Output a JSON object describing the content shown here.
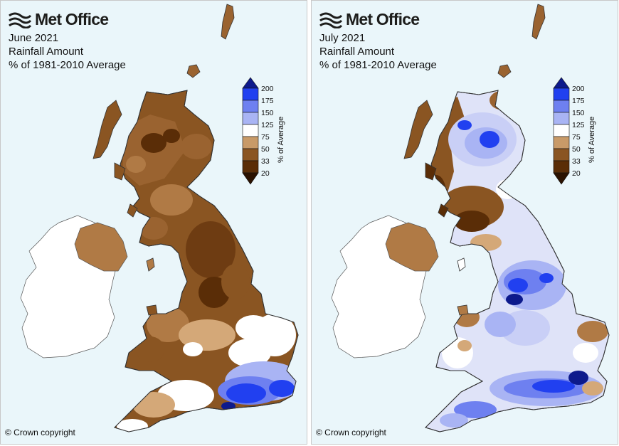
{
  "maps": [
    {
      "logo_text": "Met Office",
      "title_line1": "June 2021",
      "title_line2": "Rainfall Amount",
      "title_line3": "% of 1981-2010 Average",
      "copyright": "© Crown copyright"
    },
    {
      "logo_text": "Met Office",
      "title_line1": "July 2021",
      "title_line2": "Rainfall Amount",
      "title_line3": "% of 1981-2010 Average",
      "copyright": "© Crown copyright"
    }
  ],
  "legend": {
    "ticks": [
      "200",
      "175",
      "150",
      "125",
      "75",
      "50",
      "33",
      "20"
    ],
    "axis_label": "% of Average",
    "bands": [
      {
        "range": ">200",
        "color": "#0d1a8c"
      },
      {
        "range": "175-200",
        "color": "#2140f0"
      },
      {
        "range": "150-175",
        "color": "#6e80f0"
      },
      {
        "range": "125-150",
        "color": "#a9b4f4"
      },
      {
        "range": "75-125",
        "color": "#ffffff"
      },
      {
        "range": "50-75",
        "color": "#c89a68"
      },
      {
        "range": "33-50",
        "color": "#8a5522"
      },
      {
        "range": "20-33",
        "color": "#5a2d07"
      },
      {
        "range": "<20",
        "color": "#2b1200"
      }
    ]
  },
  "colors": {
    "sea": "#eaf6fa",
    "ireland": "#ffffff",
    "june_dry": "#8a5522",
    "june_mid": "#b07a45",
    "june_light": "#d4a878",
    "july_blue": "#6e80f0",
    "july_dark_blue": "#2140f0",
    "july_pale_blue": "#c9cff6"
  }
}
